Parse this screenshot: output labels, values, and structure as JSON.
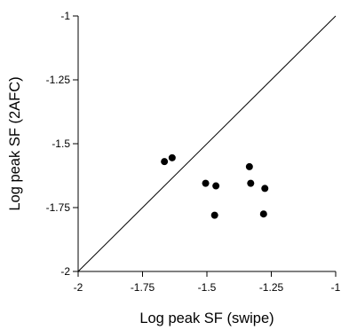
{
  "chart_data": {
    "type": "scatter",
    "title": "",
    "xlabel": "Log peak SF (swipe)",
    "ylabel": "Log peak SF (2AFC)",
    "xlim": [
      -2,
      -1
    ],
    "ylim": [
      -2,
      -1
    ],
    "x_ticks": [
      -2,
      -1.75,
      -1.5,
      -1.25,
      -1
    ],
    "y_ticks": [
      -2,
      -1.75,
      -1.5,
      -1.25,
      -1
    ],
    "x_tick_labels": [
      "-2",
      "-1.75",
      "-1.5",
      "-1.25",
      "-1"
    ],
    "y_tick_labels": [
      "-2",
      "-1.75",
      "-1.5",
      "-1.25",
      "-1"
    ],
    "grid": false,
    "legend": "none",
    "reference_line": {
      "from": [
        -2,
        -2
      ],
      "to": [
        -1,
        -1
      ]
    },
    "series": [
      {
        "points": [
          {
            "x": -1.665,
            "y": -1.57
          },
          {
            "x": -1.635,
            "y": -1.555
          },
          {
            "x": -1.505,
            "y": -1.655
          },
          {
            "x": -1.465,
            "y": -1.665
          },
          {
            "x": -1.47,
            "y": -1.78
          },
          {
            "x": -1.335,
            "y": -1.59
          },
          {
            "x": -1.33,
            "y": -1.655
          },
          {
            "x": -1.275,
            "y": -1.675
          },
          {
            "x": -1.28,
            "y": -1.775
          }
        ]
      }
    ]
  }
}
